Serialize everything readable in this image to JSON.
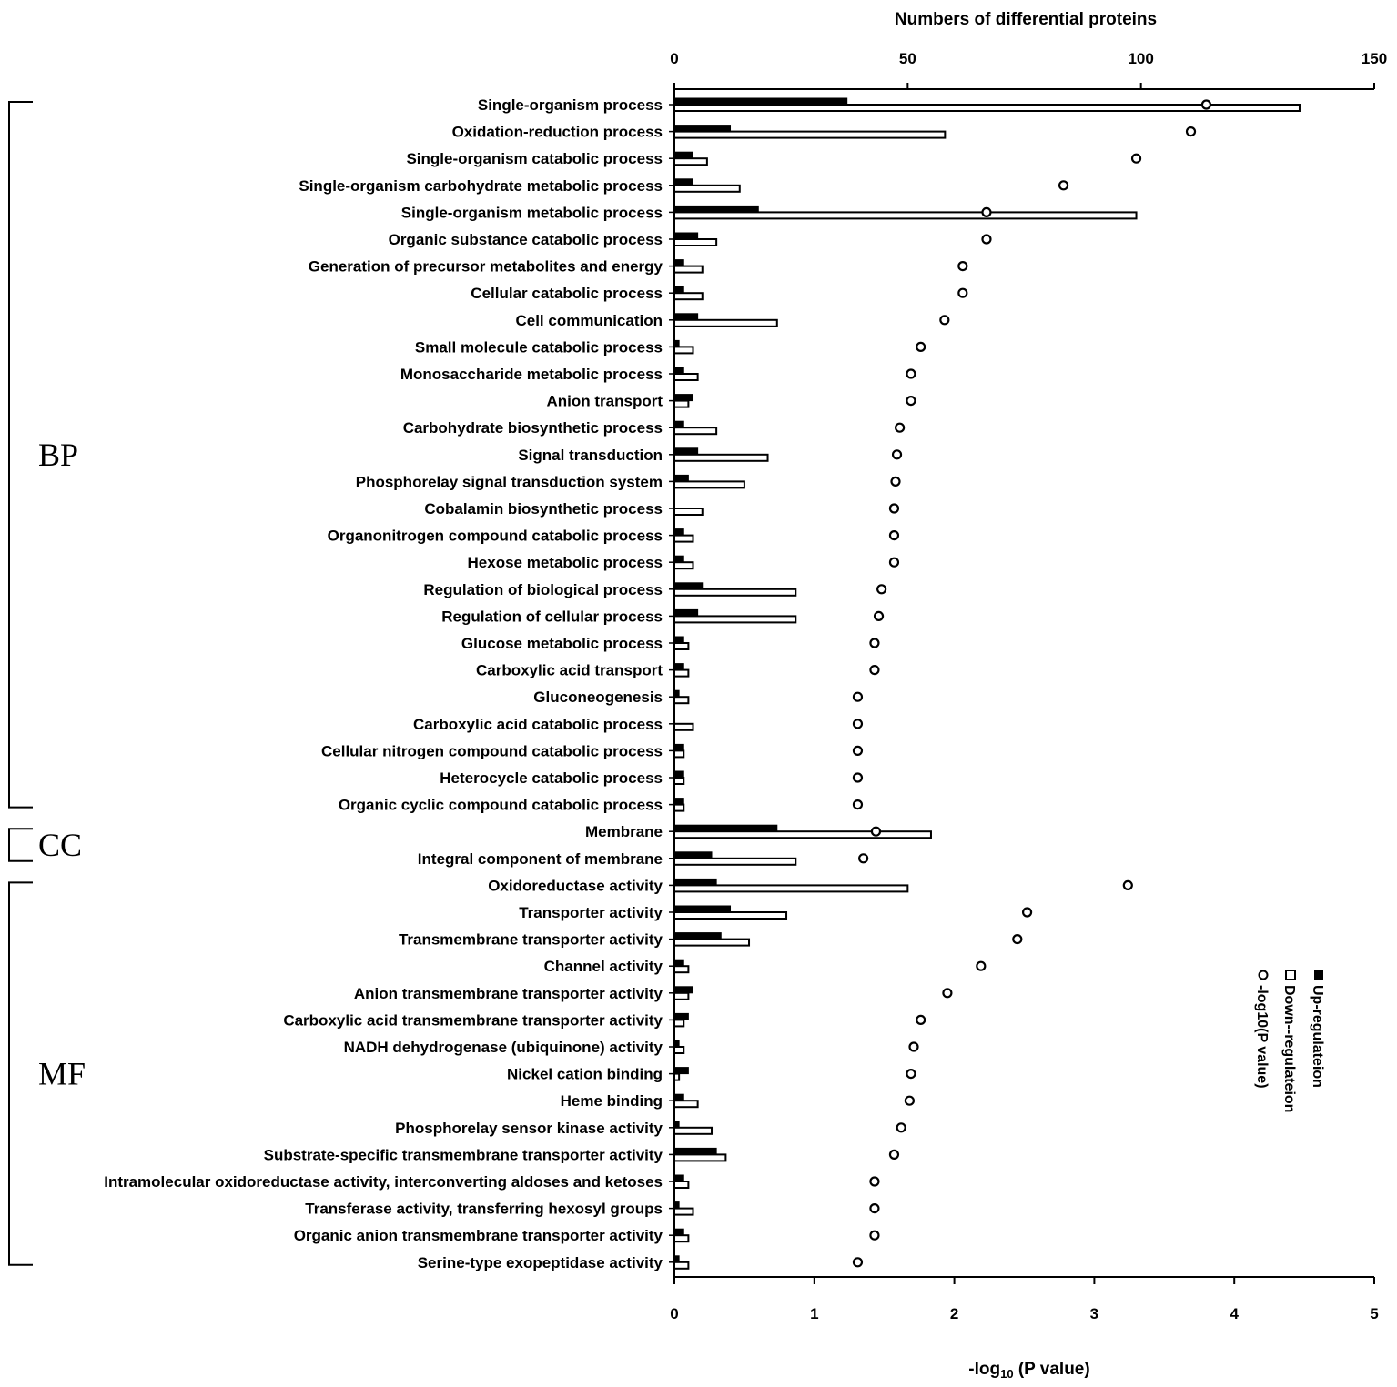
{
  "chart_data": {
    "type": "bar",
    "orientation": "horizontal",
    "top_axis": {
      "label": "Numbers of differential proteins",
      "range": [
        0,
        150
      ],
      "ticks": [
        "0",
        "50",
        "100",
        "150"
      ]
    },
    "bottom_axis": {
      "label": "-log10 (P value)",
      "label_prefix": "-log",
      "label_sub": "10",
      "label_suffix": " (P value)",
      "range": [
        0,
        5
      ],
      "ticks": [
        "0",
        "1",
        "2",
        "3",
        "4",
        "5"
      ]
    },
    "categories": [
      "Single-organism process",
      "Oxidation-reduction process",
      "Single-organism catabolic process",
      "Single-organism carbohydrate metabolic process",
      "Single-organism metabolic process",
      "Organic substance catabolic process",
      "Generation of precursor metabolites and energy",
      "Cellular catabolic process",
      "Cell communication",
      "Small molecule catabolic process",
      "Monosaccharide metabolic process",
      "Anion transport",
      "Carbohydrate biosynthetic process",
      "Signal transduction",
      "Phosphorelay signal transduction system",
      "Cobalamin biosynthetic process",
      "Organonitrogen compound catabolic process",
      "Hexose metabolic process",
      "Regulation of biological process",
      "Regulation of cellular process",
      "Glucose metabolic process",
      "Carboxylic acid transport",
      "Gluconeogenesis",
      "Carboxylic acid catabolic process",
      "Cellular nitrogen compound catabolic process",
      "Heterocycle catabolic process",
      "Organic cyclic compound catabolic process",
      "Membrane",
      "Integral component of membrane",
      "Oxidoreductase activity",
      "Transporter activity",
      "Transmembrane transporter activity",
      "Channel activity",
      "Anion transmembrane transporter activity",
      "Carboxylic acid transmembrane transporter activity",
      "NADH dehydrogenase (ubiquinone) activity",
      "Nickel cation binding",
      "Heme binding",
      "Phosphorelay sensor kinase activity",
      "Substrate-specific transmembrane transporter activity",
      "Intramolecular oxidoreductase activity, interconverting aldoses and ketoses",
      "Transferase activity, transferring hexosyl groups",
      "Organic anion transmembrane transporter activity",
      "Serine-type exopeptidase activity"
    ],
    "series": [
      {
        "name": "Up-regulateion",
        "axis": "top",
        "style": "filled-bar",
        "values": [
          37,
          12,
          4,
          4,
          18,
          5,
          2,
          2,
          5,
          1,
          2,
          4,
          2,
          5,
          3,
          0,
          2,
          2,
          6,
          5,
          2,
          2,
          1,
          0,
          2,
          2,
          2,
          22,
          8,
          9,
          12,
          10,
          2,
          4,
          3,
          1,
          3,
          2,
          1,
          9,
          2,
          1,
          2,
          1
        ]
      },
      {
        "name": "Down--regulateion",
        "axis": "top",
        "style": "open-bar",
        "values": [
          134,
          58,
          7,
          14,
          99,
          9,
          6,
          6,
          22,
          4,
          5,
          3,
          9,
          20,
          15,
          6,
          4,
          4,
          26,
          26,
          3,
          3,
          3,
          4,
          2,
          2,
          2,
          55,
          26,
          50,
          24,
          16,
          3,
          3,
          2,
          2,
          1,
          5,
          8,
          11,
          3,
          4,
          3,
          3
        ]
      },
      {
        "name": "-log10(P value)",
        "axis": "bottom",
        "style": "circle-marker",
        "values": [
          3.8,
          3.69,
          3.3,
          2.78,
          2.23,
          2.23,
          2.06,
          2.06,
          1.93,
          1.76,
          1.69,
          1.69,
          1.61,
          1.59,
          1.58,
          1.57,
          1.57,
          1.57,
          1.48,
          1.46,
          1.43,
          1.43,
          1.31,
          1.31,
          1.31,
          1.31,
          1.31,
          1.44,
          1.35,
          3.24,
          2.52,
          2.45,
          2.19,
          1.95,
          1.76,
          1.71,
          1.69,
          1.68,
          1.62,
          1.57,
          1.43,
          1.43,
          1.43,
          1.31
        ]
      }
    ],
    "groups": [
      {
        "label": "BP",
        "from": 0,
        "to": 26
      },
      {
        "label": "CC",
        "from": 27,
        "to": 28
      },
      {
        "label": "MF",
        "from": 29,
        "to": 43
      }
    ],
    "legend": {
      "placement": "right",
      "orientation": "vertical"
    }
  }
}
